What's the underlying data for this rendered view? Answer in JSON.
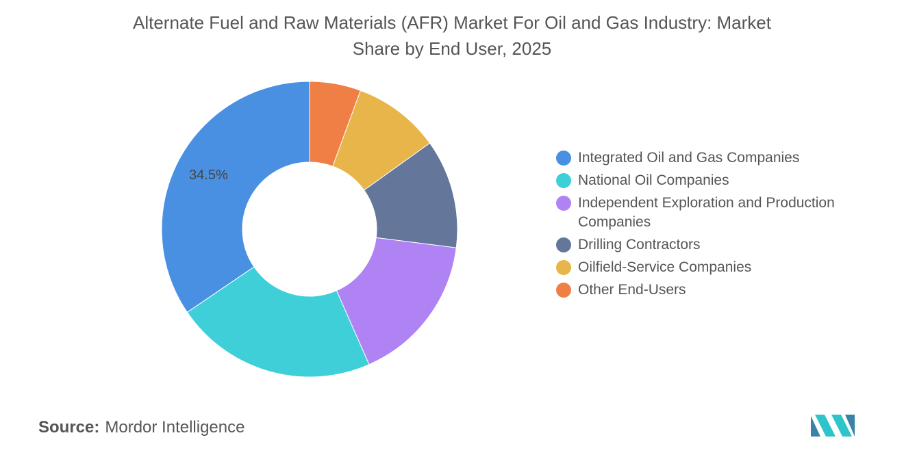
{
  "chart_data": {
    "type": "pie",
    "title": "Alternate Fuel and Raw Materials (AFR) Market For Oil and Gas Industry: Market Share by End User, 2025",
    "categories": [
      "Integrated Oil and Gas Companies",
      "National Oil Companies",
      "Independent Exploration and Production Companies",
      "Drilling Contractors",
      "Oilfield-Service Companies",
      "Other End-Users"
    ],
    "values": [
      34.5,
      22.1,
      16.4,
      11.9,
      9.5,
      5.6
    ],
    "value_labels": [
      "34.5%",
      null,
      null,
      null,
      null,
      null
    ],
    "colors": [
      "#4a90e2",
      "#3ecfd9",
      "#b083f5",
      "#64779a",
      "#e8b54b",
      "#f07f45"
    ],
    "donut": true,
    "source_label": "Source:",
    "source": "Mordor Intelligence"
  }
}
